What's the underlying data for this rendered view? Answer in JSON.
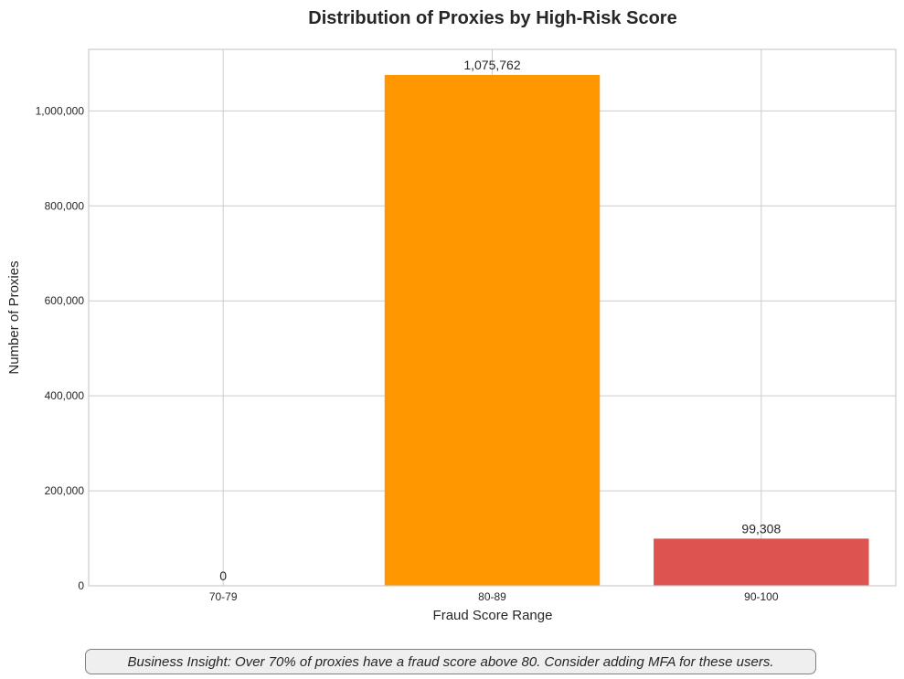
{
  "chart_data": {
    "type": "bar",
    "title": "Distribution of Proxies by High-Risk Score",
    "xlabel": "Fraud Score Range",
    "ylabel": "Number of Proxies",
    "categories": [
      "70-79",
      "80-89",
      "90-100"
    ],
    "values": [
      0,
      1075762,
      99308
    ],
    "value_labels": [
      "0",
      "1,075,762",
      "99,308"
    ],
    "colors": [
      "#4caf50",
      "#ff9800",
      "#dc5350"
    ],
    "ylim": [
      0,
      1129550
    ],
    "yticks": [
      0,
      200000,
      400000,
      600000,
      800000,
      1000000
    ],
    "ytick_labels": [
      "0",
      "200,000",
      "400,000",
      "600,000",
      "800,000",
      "1,000,000"
    ],
    "grid": true,
    "legend": "none"
  },
  "insight": {
    "text": "Business Insight: Over 70% of proxies have a fraud score above 80. Consider adding MFA for these users."
  }
}
